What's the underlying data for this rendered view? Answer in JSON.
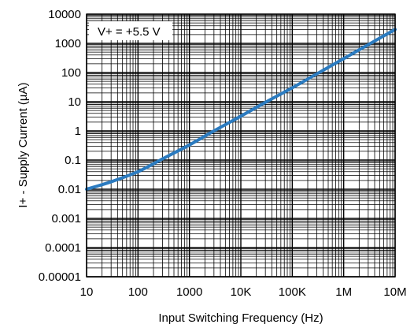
{
  "chart_data": {
    "type": "line",
    "xlabel": "Input Switching Frequency (Hz)",
    "ylabel": "I+ - Supply Current (µA)",
    "x_scale": "log",
    "y_scale": "log",
    "xlim": [
      10,
      10000000
    ],
    "ylim": [
      1e-05,
      10000
    ],
    "grid": true,
    "x_ticks": [
      {
        "value": 10,
        "label": "10"
      },
      {
        "value": 100,
        "label": "100"
      },
      {
        "value": 1000,
        "label": "1000"
      },
      {
        "value": 10000,
        "label": "10K"
      },
      {
        "value": 100000,
        "label": "100K"
      },
      {
        "value": 1000000,
        "label": "1M"
      },
      {
        "value": 10000000,
        "label": "10M"
      }
    ],
    "y_ticks": [
      {
        "value": 10000,
        "label": "10000"
      },
      {
        "value": 1000,
        "label": "1000"
      },
      {
        "value": 100,
        "label": "100"
      },
      {
        "value": 10,
        "label": "10"
      },
      {
        "value": 1,
        "label": "1"
      },
      {
        "value": 0.1,
        "label": "0.1"
      },
      {
        "value": 0.01,
        "label": "0.01"
      },
      {
        "value": 0.001,
        "label": "0.001"
      },
      {
        "value": 0.0001,
        "label": "0.0001"
      },
      {
        "value": 1e-05,
        "label": "0.00001"
      }
    ],
    "annotation": "V+ = +5.5 V",
    "series": [
      {
        "color": "#2b7bc0",
        "x": [
          10,
          30,
          100,
          300,
          1000,
          3000,
          10000,
          30000,
          100000,
          300000,
          1000000,
          3000000,
          10000000
        ],
        "y": [
          0.01,
          0.018,
          0.04,
          0.11,
          0.33,
          1.0,
          3.2,
          9.5,
          30,
          90,
          300,
          900,
          3000
        ]
      }
    ]
  }
}
